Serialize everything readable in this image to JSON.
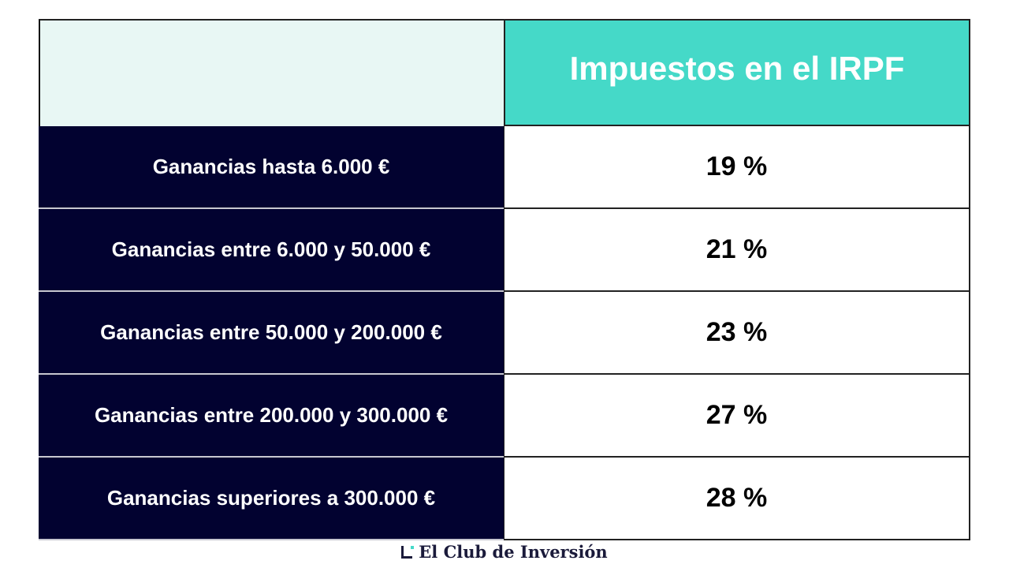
{
  "header": {
    "title": "Impuestos en el IRPF"
  },
  "rows": [
    {
      "label": "Ganancias hasta 6.000 €",
      "value": "19 %"
    },
    {
      "label": "Ganancias entre 6.000 y 50.000 €",
      "value": "21 %"
    },
    {
      "label": "Ganancias entre 50.000 y 200.000 €",
      "value": "23 %"
    },
    {
      "label": "Ganancias entre 200.000 y 300.000 €",
      "value": "27 %"
    },
    {
      "label": "Ganancias superiores a 300.000 €",
      "value": "28 %"
    }
  ],
  "footer": {
    "brand": "El Club de Inversión"
  },
  "colors": {
    "header_accent": "#45d9c8",
    "label_bg": "#020230",
    "header_left_bg": "#e8f7f4"
  }
}
